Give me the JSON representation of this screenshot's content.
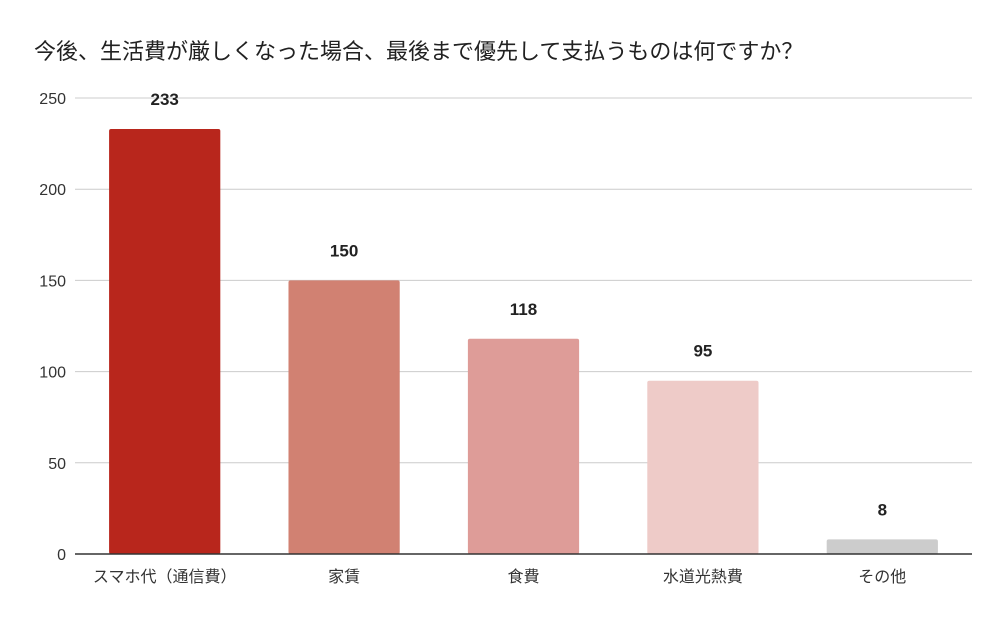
{
  "chart_data": {
    "type": "bar",
    "title": "今後、生活費が厳しくなった場合、最後まで優先して支払うものは何ですか？",
    "xlabel": "",
    "ylabel": "",
    "categories": [
      "スマホ代（通信費）",
      "家賃",
      "食費",
      "水道光熱費",
      "その他"
    ],
    "values": [
      233,
      150,
      118,
      95,
      8
    ],
    "colors": [
      "#B8261C",
      "#D18172",
      "#DE9C98",
      "#EECBC8",
      "#CCCCCC"
    ],
    "ylim": [
      0,
      250
    ],
    "yticks": [
      0,
      50,
      100,
      150,
      200,
      250
    ],
    "grid": true,
    "legend": "none",
    "data_labels": true
  }
}
